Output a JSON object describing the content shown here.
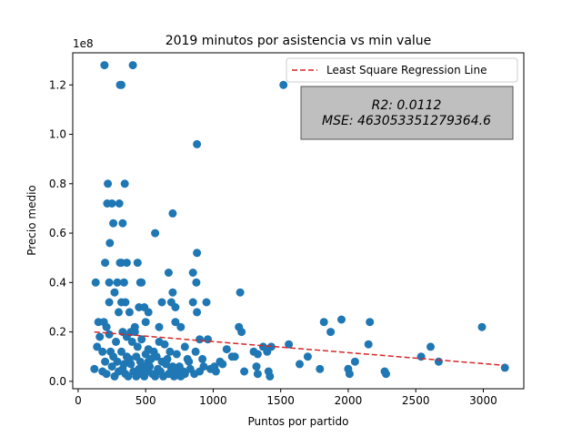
{
  "chart_data": {
    "type": "scatter",
    "title": "2019 minutos por asistencia vs min value",
    "xlabel": "Puntos por partido",
    "ylabel": "Precio medio",
    "y_offset_label": "1e8",
    "y_scale": 100000000,
    "xlim": [
      -40,
      3300
    ],
    "ylim": [
      -0.03,
      1.33
    ],
    "x_ticks": [
      0,
      500,
      1000,
      1500,
      2000,
      2500,
      3000
    ],
    "y_ticks": [
      0.0,
      0.2,
      0.4,
      0.6,
      0.8,
      1.0,
      1.2
    ],
    "y_tick_labels": [
      "0.0",
      "0.2",
      "0.4",
      "0.6",
      "0.8",
      "1.0",
      "1.2"
    ],
    "grid": false,
    "legend_position": "top-right",
    "colors": {
      "points": "#1f77b4",
      "regression": "#d62728",
      "stats_box": "#bfbfbf"
    },
    "regression": {
      "name": "Least Square Regression Line",
      "style": "dashed",
      "x": [
        120,
        3150
      ],
      "y": [
        0.2,
        0.065
      ]
    },
    "stats": {
      "r2": "R2: 0.0112",
      "mse": "MSE: 463053351279364.6"
    },
    "points": [
      [
        195,
        1.28
      ],
      [
        405,
        1.28
      ],
      [
        310,
        1.2
      ],
      [
        320,
        1.2
      ],
      [
        1520,
        1.2
      ],
      [
        880,
        0.96
      ],
      [
        220,
        0.8
      ],
      [
        345,
        0.8
      ],
      [
        215,
        0.72
      ],
      [
        250,
        0.72
      ],
      [
        305,
        0.72
      ],
      [
        700,
        0.68
      ],
      [
        260,
        0.64
      ],
      [
        330,
        0.64
      ],
      [
        235,
        0.56
      ],
      [
        570,
        0.6
      ],
      [
        880,
        0.52
      ],
      [
        200,
        0.48
      ],
      [
        310,
        0.48
      ],
      [
        320,
        0.48
      ],
      [
        360,
        0.48
      ],
      [
        440,
        0.48
      ],
      [
        130,
        0.4
      ],
      [
        230,
        0.4
      ],
      [
        290,
        0.4
      ],
      [
        340,
        0.4
      ],
      [
        460,
        0.4
      ],
      [
        470,
        0.4
      ],
      [
        875,
        0.4
      ],
      [
        850,
        0.44
      ],
      [
        670,
        0.44
      ],
      [
        270,
        0.36
      ],
      [
        700,
        0.36
      ],
      [
        1200,
        0.36
      ],
      [
        150,
        0.24
      ],
      [
        190,
        0.24
      ],
      [
        230,
        0.32
      ],
      [
        320,
        0.32
      ],
      [
        350,
        0.32
      ],
      [
        380,
        0.28
      ],
      [
        300,
        0.28
      ],
      [
        450,
        0.3
      ],
      [
        490,
        0.3
      ],
      [
        520,
        0.28
      ],
      [
        620,
        0.32
      ],
      [
        690,
        0.32
      ],
      [
        720,
        0.3
      ],
      [
        760,
        0.22
      ],
      [
        850,
        0.32
      ],
      [
        950,
        0.32
      ],
      [
        880,
        0.28
      ],
      [
        720,
        0.24
      ],
      [
        500,
        0.24
      ],
      [
        420,
        0.22
      ],
      [
        600,
        0.22
      ],
      [
        1190,
        0.22
      ],
      [
        1210,
        0.2
      ],
      [
        1820,
        0.24
      ],
      [
        1950,
        0.25
      ],
      [
        2160,
        0.24
      ],
      [
        1870,
        0.2
      ],
      [
        2990,
        0.22
      ],
      [
        1560,
        0.15
      ],
      [
        2150,
        0.15
      ],
      [
        2610,
        0.14
      ],
      [
        1370,
        0.14
      ],
      [
        1300,
        0.12
      ],
      [
        1330,
        0.11
      ],
      [
        1400,
        0.12
      ],
      [
        1430,
        0.14
      ],
      [
        1700,
        0.1
      ],
      [
        1640,
        0.07
      ],
      [
        1790,
        0.05
      ],
      [
        2000,
        0.05
      ],
      [
        2010,
        0.03
      ],
      [
        2050,
        0.08
      ],
      [
        2270,
        0.04
      ],
      [
        2280,
        0.03
      ],
      [
        2540,
        0.1
      ],
      [
        2670,
        0.08
      ],
      [
        3160,
        0.055
      ],
      [
        1320,
        0.06
      ],
      [
        1330,
        0.03
      ],
      [
        1420,
        0.02
      ],
      [
        1410,
        0.04
      ],
      [
        1230,
        0.04
      ],
      [
        1160,
        0.1
      ],
      [
        1100,
        0.13
      ],
      [
        1140,
        0.1
      ],
      [
        1050,
        0.08
      ],
      [
        980,
        0.05
      ],
      [
        1020,
        0.04
      ],
      [
        960,
        0.17
      ],
      [
        900,
        0.17
      ],
      [
        820,
        0.08
      ],
      [
        780,
        0.04
      ],
      [
        760,
        0.02
      ],
      [
        700,
        0.06
      ],
      [
        680,
        0.12
      ],
      [
        640,
        0.15
      ],
      [
        600,
        0.16
      ],
      [
        560,
        0.12
      ],
      [
        520,
        0.08
      ],
      [
        480,
        0.06
      ],
      [
        440,
        0.14
      ],
      [
        400,
        0.16
      ],
      [
        360,
        0.1
      ],
      [
        320,
        0.12
      ],
      [
        280,
        0.16
      ],
      [
        240,
        0.12
      ],
      [
        200,
        0.08
      ],
      [
        160,
        0.18
      ],
      [
        140,
        0.14
      ],
      [
        120,
        0.05
      ],
      [
        180,
        0.04
      ],
      [
        210,
        0.03
      ],
      [
        250,
        0.06
      ],
      [
        270,
        0.02
      ],
      [
        300,
        0.04
      ],
      [
        330,
        0.05
      ],
      [
        350,
        0.03
      ],
      [
        370,
        0.02
      ],
      [
        390,
        0.07
      ],
      [
        410,
        0.04
      ],
      [
        430,
        0.02
      ],
      [
        450,
        0.05
      ],
      [
        470,
        0.03
      ],
      [
        490,
        0.02
      ],
      [
        510,
        0.04
      ],
      [
        530,
        0.06
      ],
      [
        550,
        0.03
      ],
      [
        570,
        0.02
      ],
      [
        590,
        0.05
      ],
      [
        610,
        0.04
      ],
      [
        630,
        0.02
      ],
      [
        650,
        0.07
      ],
      [
        670,
        0.03
      ],
      [
        690,
        0.05
      ],
      [
        710,
        0.02
      ],
      [
        730,
        0.04
      ],
      [
        750,
        0.06
      ],
      [
        790,
        0.03
      ],
      [
        830,
        0.05
      ],
      [
        860,
        0.03
      ],
      [
        900,
        0.04
      ],
      [
        930,
        0.06
      ],
      [
        210,
        0.22
      ],
      [
        230,
        0.19
      ],
      [
        330,
        0.2
      ],
      [
        360,
        0.18
      ],
      [
        390,
        0.2
      ],
      [
        420,
        0.2
      ],
      [
        470,
        0.17
      ],
      [
        520,
        0.13
      ],
      [
        580,
        0.1
      ],
      [
        620,
        0.08
      ],
      [
        660,
        0.09
      ],
      [
        730,
        0.11
      ],
      [
        790,
        0.14
      ],
      [
        180,
        0.12
      ],
      [
        260,
        0.1
      ],
      [
        290,
        0.08
      ],
      [
        340,
        0.07
      ],
      [
        380,
        0.09
      ],
      [
        430,
        0.1
      ],
      [
        460,
        0.08
      ],
      [
        500,
        0.11
      ],
      [
        540,
        0.09
      ],
      [
        1010,
        0.06
      ],
      [
        1070,
        0.07
      ],
      [
        870,
        0.12
      ],
      [
        810,
        0.09
      ],
      [
        920,
        0.09
      ]
    ]
  }
}
